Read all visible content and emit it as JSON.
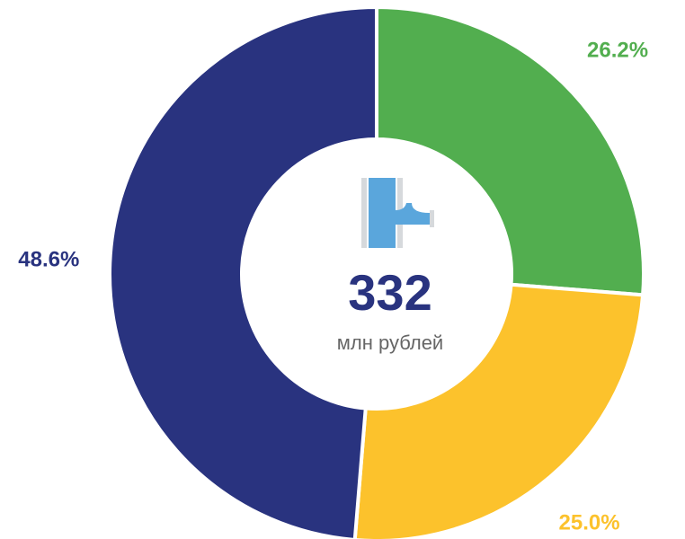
{
  "chart_data": {
    "type": "donut",
    "values": [
      26.2,
      25.0,
      48.6
    ],
    "value_labels": [
      "26.2%",
      "25.0%",
      "48.6%"
    ],
    "colors": [
      "#52ae4f",
      "#fcc22c",
      "#29337f"
    ],
    "center_value": 332,
    "center_text": "млн рублей"
  }
}
